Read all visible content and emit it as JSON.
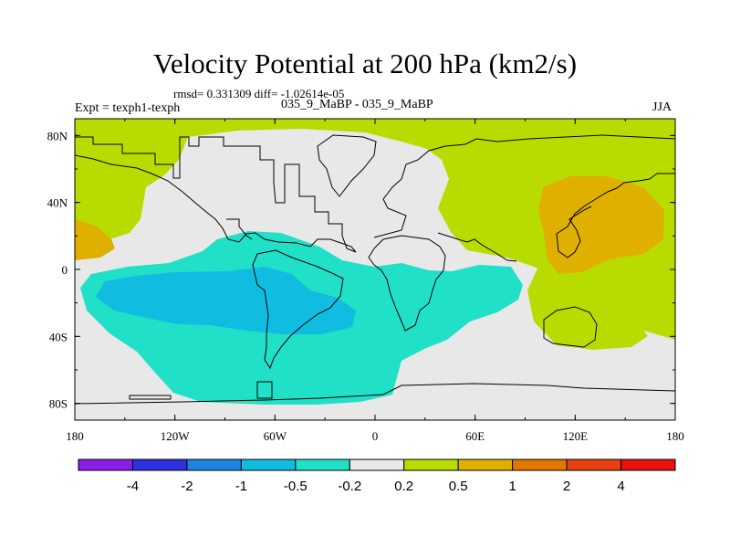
{
  "header": {
    "title": "Velocity Potential at 200 hPa (km2/s)",
    "stats": "rmsd= 0.331309 diff= -1.02614e-05",
    "expt": "Expt = texph1-texph",
    "case": "035_9_MaBP - 035_9_MaBP",
    "season": "JJA"
  },
  "chart_data": {
    "type": "heatmap",
    "title": "Velocity Potential at 200 hPa (km2/s)",
    "xlabel": "",
    "ylabel": "",
    "x_ticks": [
      "180",
      "120W",
      "60W",
      "0",
      "60E",
      "120E",
      "180"
    ],
    "y_ticks": [
      "80N",
      "40N",
      "0",
      "40S",
      "80S"
    ],
    "xlim": [
      -180,
      180
    ],
    "ylim": [
      -90,
      90
    ],
    "colorbar": {
      "levels": [
        "-4",
        "-2",
        "-1",
        "-0.5",
        "-0.2",
        "0.2",
        "0.5",
        "1",
        "2",
        "4"
      ],
      "colors": [
        "#8a1ee6",
        "#3030e0",
        "#1c84e0",
        "#10bce0",
        "#20e0c8",
        "#e8e8e8",
        "#b8dc00",
        "#e0b000",
        "#e07800",
        "#e84010",
        "#e81010"
      ]
    },
    "regions": [
      {
        "range": "-0.5 to -0.2",
        "color": "#20e0c8",
        "area": "Pacific/Americas/Atlantic, Southern Hemisphere"
      },
      {
        "range": "-1 to -0.5",
        "color": "#10bce0",
        "area": "eastern Pacific / South America"
      },
      {
        "range": "0.2 to 0.5",
        "color": "#b8dc00",
        "area": "Northern polar, Asia, Indian Ocean, Australia"
      },
      {
        "range": "0.5 to 1",
        "color": "#e0b000",
        "area": "Asia near 120E, 20N-50N; western Pacific near 180, 20N"
      }
    ]
  }
}
